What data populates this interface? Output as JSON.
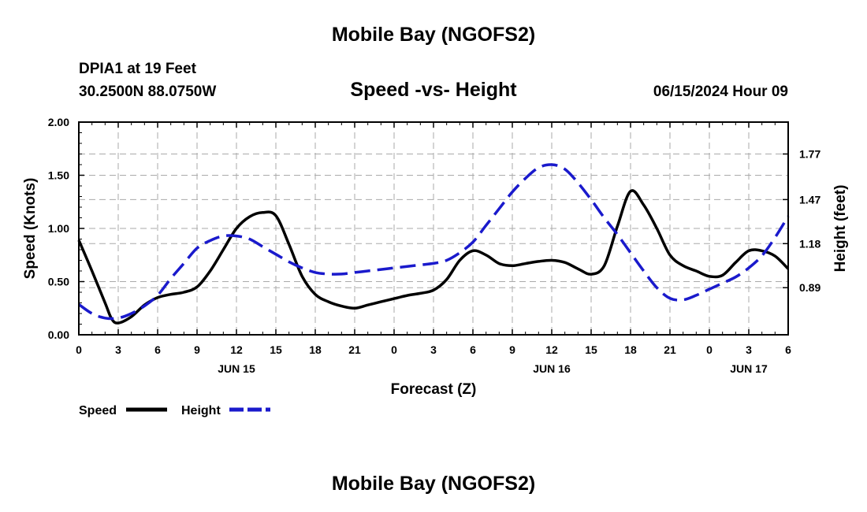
{
  "header": {
    "title": "Mobile Bay (NGOFS2)",
    "station": "DPIA1 at 19 Feet",
    "coordinates": "30.2500N  88.0750W",
    "subtitle": "Speed -vs- Height",
    "datetime": "06/15/2024 Hour 09",
    "footer_title": "Mobile Bay (NGOFS2)"
  },
  "chart_data": {
    "type": "line",
    "title": "Speed -vs- Height",
    "xlabel": "Forecast (Z)",
    "ylabel": "Speed (Knots)",
    "y2label": "Height (feet)",
    "xlim": [
      0,
      54
    ],
    "ylim": [
      0,
      2
    ],
    "y2lim": [
      0.58,
      1.98
    ],
    "x_ticks": [
      0,
      3,
      6,
      9,
      12,
      15,
      18,
      21,
      24,
      27,
      30,
      33,
      36,
      39,
      42,
      45,
      48,
      51,
      54
    ],
    "x_tick_labels": [
      "0",
      "3",
      "6",
      "9",
      "12",
      "15",
      "18",
      "21",
      "0",
      "3",
      "6",
      "9",
      "12",
      "15",
      "18",
      "21",
      "0",
      "3",
      "6"
    ],
    "date_labels": [
      {
        "x": 12,
        "label": "JUN 15"
      },
      {
        "x": 36,
        "label": "JUN 16"
      },
      {
        "x": 51,
        "label": "JUN 17"
      }
    ],
    "y_ticks": [
      0.0,
      0.5,
      1.0,
      1.5,
      2.0
    ],
    "y_tick_labels": [
      "0.00",
      "0.50",
      "1.00",
      "1.50",
      "2.00"
    ],
    "y2_ticks": [
      0.89,
      1.18,
      1.47,
      1.77
    ],
    "y2_tick_labels": [
      "0.89",
      "1.18",
      "1.47",
      "1.77"
    ],
    "grid": true,
    "legend": [
      {
        "name": "Speed",
        "color": "#000000",
        "style": "solid"
      },
      {
        "name": "Height",
        "color": "#1a1acc",
        "style": "dashed"
      }
    ],
    "series": [
      {
        "name": "Speed",
        "axis": "left",
        "color": "#000000",
        "x": [
          0,
          1,
          2,
          2.5,
          3,
          4,
          5,
          6,
          7,
          8,
          9,
          10,
          11,
          12,
          13,
          14,
          15,
          16,
          17,
          18,
          19,
          20,
          21,
          22,
          23,
          24,
          25,
          26,
          27,
          28,
          29,
          30,
          31,
          32,
          33,
          34,
          35,
          36,
          37,
          38,
          39,
          40,
          41,
          42,
          43,
          44,
          45,
          46,
          47,
          48,
          49,
          50,
          51,
          52,
          53,
          54
        ],
        "values": [
          0.89,
          0.6,
          0.3,
          0.15,
          0.11,
          0.17,
          0.28,
          0.35,
          0.38,
          0.4,
          0.45,
          0.6,
          0.8,
          1.0,
          1.11,
          1.15,
          1.12,
          0.85,
          0.55,
          0.38,
          0.31,
          0.27,
          0.25,
          0.28,
          0.31,
          0.34,
          0.37,
          0.39,
          0.42,
          0.52,
          0.7,
          0.79,
          0.75,
          0.67,
          0.65,
          0.67,
          0.69,
          0.7,
          0.68,
          0.62,
          0.57,
          0.65,
          1.02,
          1.35,
          1.22,
          1.0,
          0.75,
          0.65,
          0.6,
          0.55,
          0.56,
          0.68,
          0.79,
          0.79,
          0.74,
          0.62
        ]
      },
      {
        "name": "Height",
        "axis": "right",
        "color": "#1a1acc",
        "x": [
          0,
          1,
          2,
          3,
          4,
          5,
          6,
          7,
          8,
          9,
          10,
          11,
          12,
          13,
          14,
          15,
          16,
          17,
          18,
          19,
          20,
          21,
          22,
          23,
          24,
          25,
          26,
          27,
          28,
          29,
          30,
          31,
          32,
          33,
          34,
          35,
          36,
          37,
          38,
          39,
          40,
          41,
          42,
          43,
          44,
          45,
          46,
          47,
          48,
          49,
          50,
          51,
          52,
          53,
          54
        ],
        "values": [
          0.78,
          0.72,
          0.69,
          0.69,
          0.72,
          0.77,
          0.84,
          0.95,
          1.05,
          1.15,
          1.2,
          1.23,
          1.23,
          1.21,
          1.16,
          1.11,
          1.06,
          1.02,
          0.99,
          0.98,
          0.98,
          0.99,
          1.0,
          1.01,
          1.02,
          1.03,
          1.04,
          1.05,
          1.07,
          1.12,
          1.19,
          1.3,
          1.41,
          1.52,
          1.61,
          1.68,
          1.7,
          1.67,
          1.58,
          1.47,
          1.35,
          1.24,
          1.12,
          1.0,
          0.89,
          0.82,
          0.81,
          0.84,
          0.88,
          0.92,
          0.96,
          1.02,
          1.1,
          1.22,
          1.36
        ]
      }
    ]
  }
}
